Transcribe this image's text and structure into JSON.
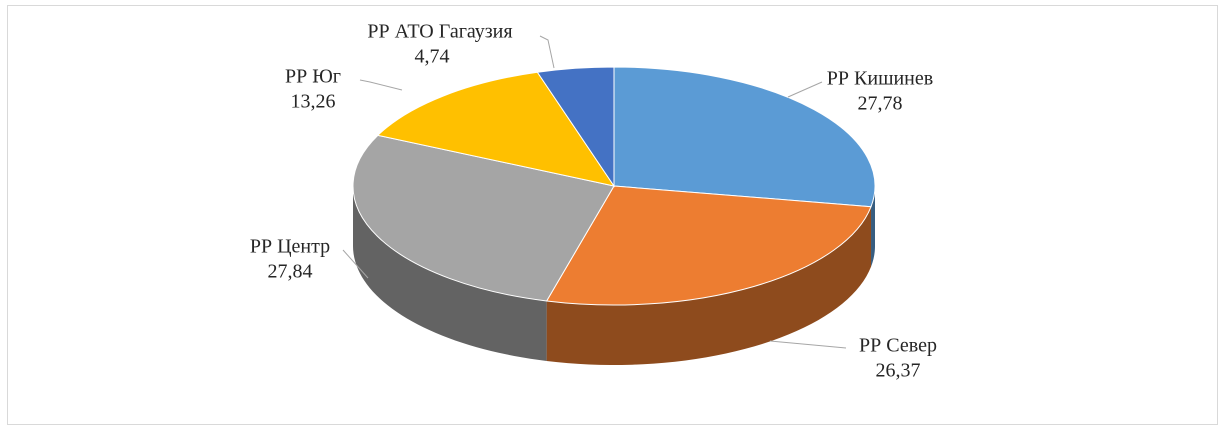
{
  "chart_data": {
    "type": "pie",
    "categories": [
      "РР Кишинев",
      "РР Север",
      "РР Центр",
      "РР Юг",
      "РР АТО Гагаузия"
    ],
    "values": [
      27.78,
      26.37,
      27.84,
      13.26,
      4.74
    ],
    "value_labels": [
      "27,78",
      "26,37",
      "27,84",
      "13,26",
      "4,74"
    ],
    "colors": [
      "#5b9bd5",
      "#ed7d31",
      "#a5a5a5",
      "#ffc000",
      "#4472c4"
    ]
  }
}
